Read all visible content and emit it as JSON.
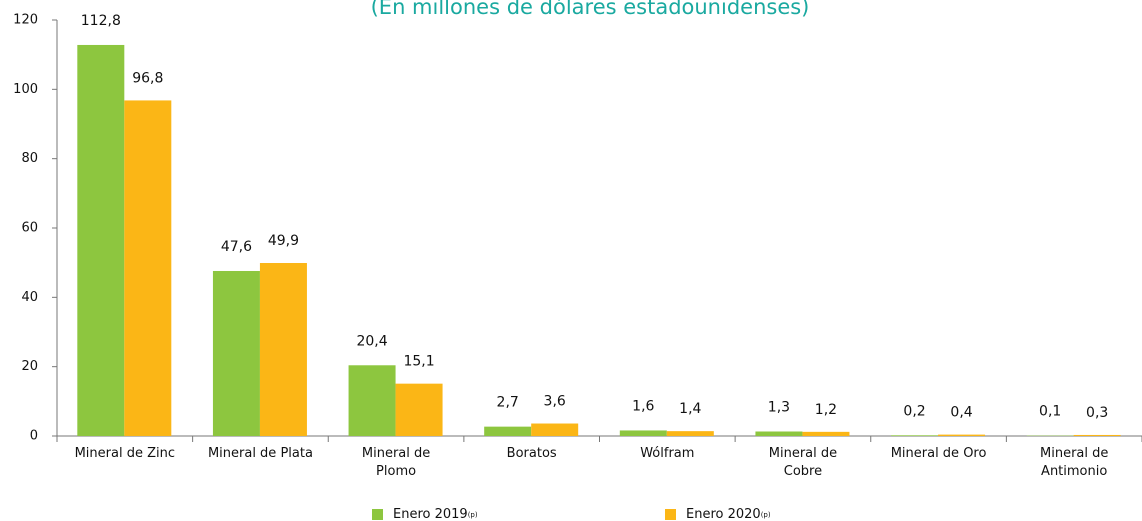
{
  "chart_data": {
    "type": "bar",
    "subtitle": "(En millones de dólares estadounidenses)",
    "categories": [
      "Mineral de Zinc",
      "Mineral de Plata",
      "Mineral de\nPlomo",
      "Boratos",
      "Wólfram",
      "Mineral de\nCobre",
      "Mineral de Oro",
      "Mineral de\nAntimonio"
    ],
    "series": [
      {
        "name": "Enero 2019",
        "note": "(p)",
        "color": "#8dc63f",
        "values": [
          112.8,
          47.6,
          20.4,
          2.7,
          1.6,
          1.3,
          0.2,
          0.1
        ],
        "value_labels": [
          "112,8",
          "47,6",
          "20,4",
          "2,7",
          "1,6",
          "1,3",
          "0,2",
          "0,1"
        ]
      },
      {
        "name": "Enero 2020",
        "note": "(p)",
        "color": "#fbb616",
        "values": [
          96.8,
          49.9,
          15.1,
          3.6,
          1.4,
          1.2,
          0.4,
          0.3
        ],
        "value_labels": [
          "96,8",
          "49,9",
          "15,1",
          "3,6",
          "1,4",
          "1,2",
          "0,4",
          "0,3"
        ]
      }
    ],
    "ylim": [
      0,
      120
    ],
    "yticks": [
      0,
      20,
      40,
      60,
      80,
      100,
      120
    ],
    "grid": false,
    "legend": "bottom"
  }
}
